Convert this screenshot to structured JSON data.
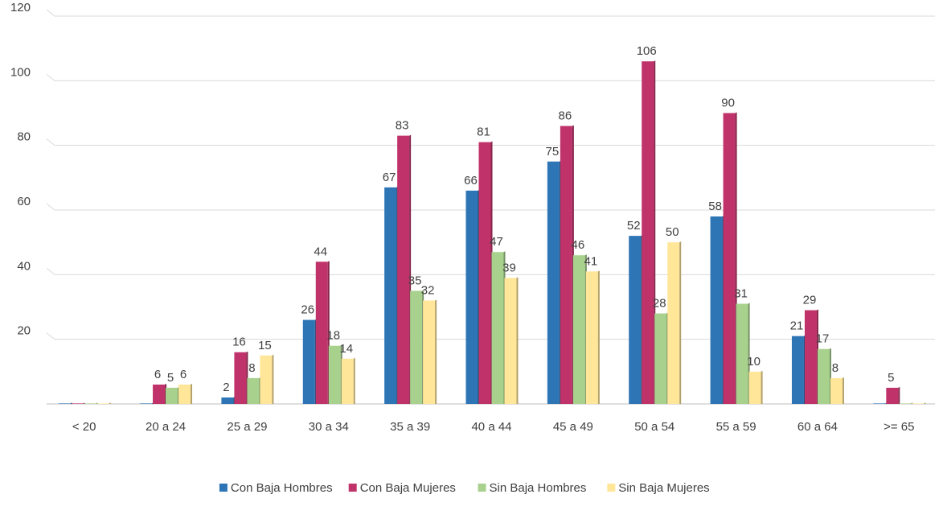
{
  "chart_data": {
    "type": "bar",
    "title": "",
    "xlabel": "",
    "ylabel": "",
    "ylim": [
      0,
      120
    ],
    "yticks": [
      20,
      40,
      60,
      80,
      100,
      120
    ],
    "categories": [
      "< 20",
      "20 a 24",
      "25 a 29",
      "30 a 34",
      "35 a 39",
      "40 a 44",
      "45 a 49",
      "50 a 54",
      "55 a 59",
      "60 a 64",
      ">= 65"
    ],
    "series": [
      {
        "name": "Con Baja Hombres",
        "color": "#2E75B6",
        "values": [
          0,
          0,
          2,
          26,
          67,
          66,
          75,
          52,
          58,
          21,
          0
        ],
        "labels": [
          "",
          "",
          "2",
          "26",
          "67",
          "66",
          "75",
          "52",
          "58",
          "21",
          ""
        ]
      },
      {
        "name": "Con Baja Mujeres",
        "color": "#C0336A",
        "values": [
          0,
          6,
          16,
          44,
          83,
          81,
          86,
          106,
          90,
          29,
          5
        ],
        "labels": [
          "",
          "6",
          "16",
          "44",
          "83",
          "81",
          "86",
          "106",
          "90",
          "29",
          "5"
        ]
      },
      {
        "name": "Sin Baja Hombres",
        "color": "#A9D18E",
        "values": [
          0,
          5,
          8,
          18,
          35,
          47,
          46,
          28,
          31,
          17,
          0
        ],
        "labels": [
          "",
          "5",
          "8",
          "18",
          "35",
          "47",
          "46",
          "28",
          "31",
          "17",
          ""
        ]
      },
      {
        "name": "Sin Baja Mujeres",
        "color": "#FFE699",
        "values": [
          0,
          6,
          15,
          14,
          32,
          39,
          41,
          50,
          10,
          8,
          0
        ],
        "labels": [
          "",
          "6",
          "15",
          "14",
          "32",
          "39",
          "41",
          "50",
          "10",
          "8",
          ""
        ]
      }
    ],
    "grid": true,
    "legend_position": "bottom"
  }
}
